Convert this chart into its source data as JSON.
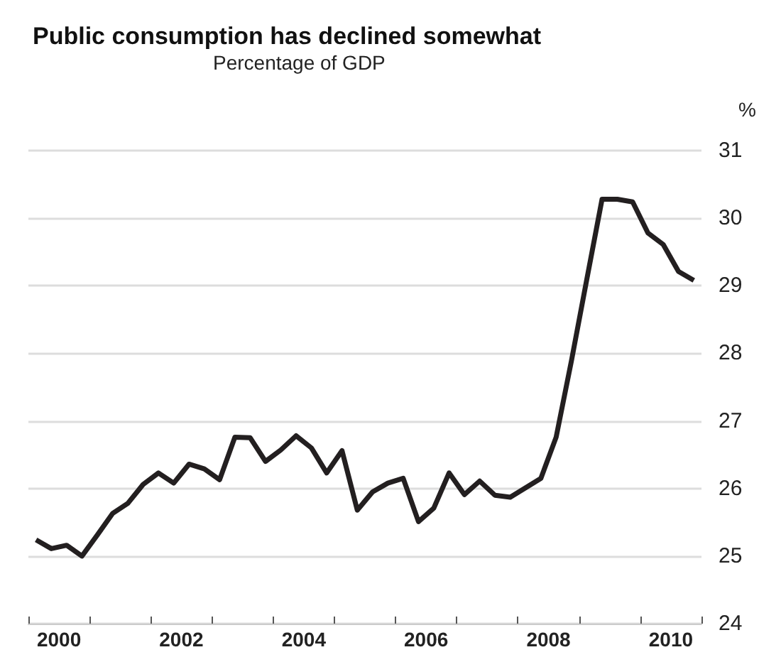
{
  "chart_data": {
    "type": "line",
    "title": "Public consumption has declined somewhat",
    "subtitle": "Percentage of GDP",
    "ylabel": "%",
    "x": [
      2000.125,
      2000.375,
      2000.625,
      2000.875,
      2001.125,
      2001.375,
      2001.625,
      2001.875,
      2002.125,
      2002.375,
      2002.625,
      2002.875,
      2003.125,
      2003.375,
      2003.625,
      2003.875,
      2004.125,
      2004.375,
      2004.625,
      2004.875,
      2005.125,
      2005.375,
      2005.625,
      2005.875,
      2006.125,
      2006.375,
      2006.625,
      2006.875,
      2007.125,
      2007.375,
      2007.625,
      2007.875,
      2008.125,
      2008.375,
      2008.625,
      2008.875,
      2009.125,
      2009.375,
      2009.625,
      2009.875,
      2010.125,
      2010.375,
      2010.625,
      2010.875
    ],
    "series": [
      {
        "color": "#231f20",
        "values": [
          25.24,
          25.11,
          25.16,
          25.0,
          25.31,
          25.63,
          25.78,
          26.06,
          26.23,
          26.08,
          26.36,
          26.29,
          26.13,
          26.76,
          26.75,
          26.4,
          26.57,
          26.78,
          26.6,
          26.23,
          26.56,
          25.68,
          25.95,
          26.08,
          26.15,
          25.51,
          25.71,
          26.23,
          25.91,
          26.11,
          25.9,
          25.87,
          26.01,
          26.15,
          26.76,
          27.89,
          29.09,
          30.28,
          30.28,
          30.24,
          29.78,
          29.61,
          29.21,
          29.08
        ]
      }
    ],
    "xlim": [
      2000,
      2011
    ],
    "xticks": [
      {
        "value": 2000,
        "label": null
      },
      {
        "value": 2000.5,
        "label": "2000"
      },
      {
        "value": 2001,
        "label": null
      },
      {
        "value": 2002,
        "label": null
      },
      {
        "value": 2002.5,
        "label": "2002"
      },
      {
        "value": 2003,
        "label": null
      },
      {
        "value": 2004,
        "label": null
      },
      {
        "value": 2004.5,
        "label": "2004"
      },
      {
        "value": 2005,
        "label": null
      },
      {
        "value": 2006,
        "label": null
      },
      {
        "value": 2006.5,
        "label": "2006"
      },
      {
        "value": 2007,
        "label": null
      },
      {
        "value": 2008,
        "label": null
      },
      {
        "value": 2008.5,
        "label": "2008"
      },
      {
        "value": 2009,
        "label": null
      },
      {
        "value": 2010,
        "label": null
      },
      {
        "value": 2010.5,
        "label": "2010"
      },
      {
        "value": 2011,
        "label": null
      }
    ],
    "ylim": [
      24,
      31
    ],
    "yticks": [
      24,
      25,
      26,
      27,
      28,
      29,
      30,
      31
    ],
    "grid": "y",
    "marker": "none",
    "line_style": "solid"
  }
}
